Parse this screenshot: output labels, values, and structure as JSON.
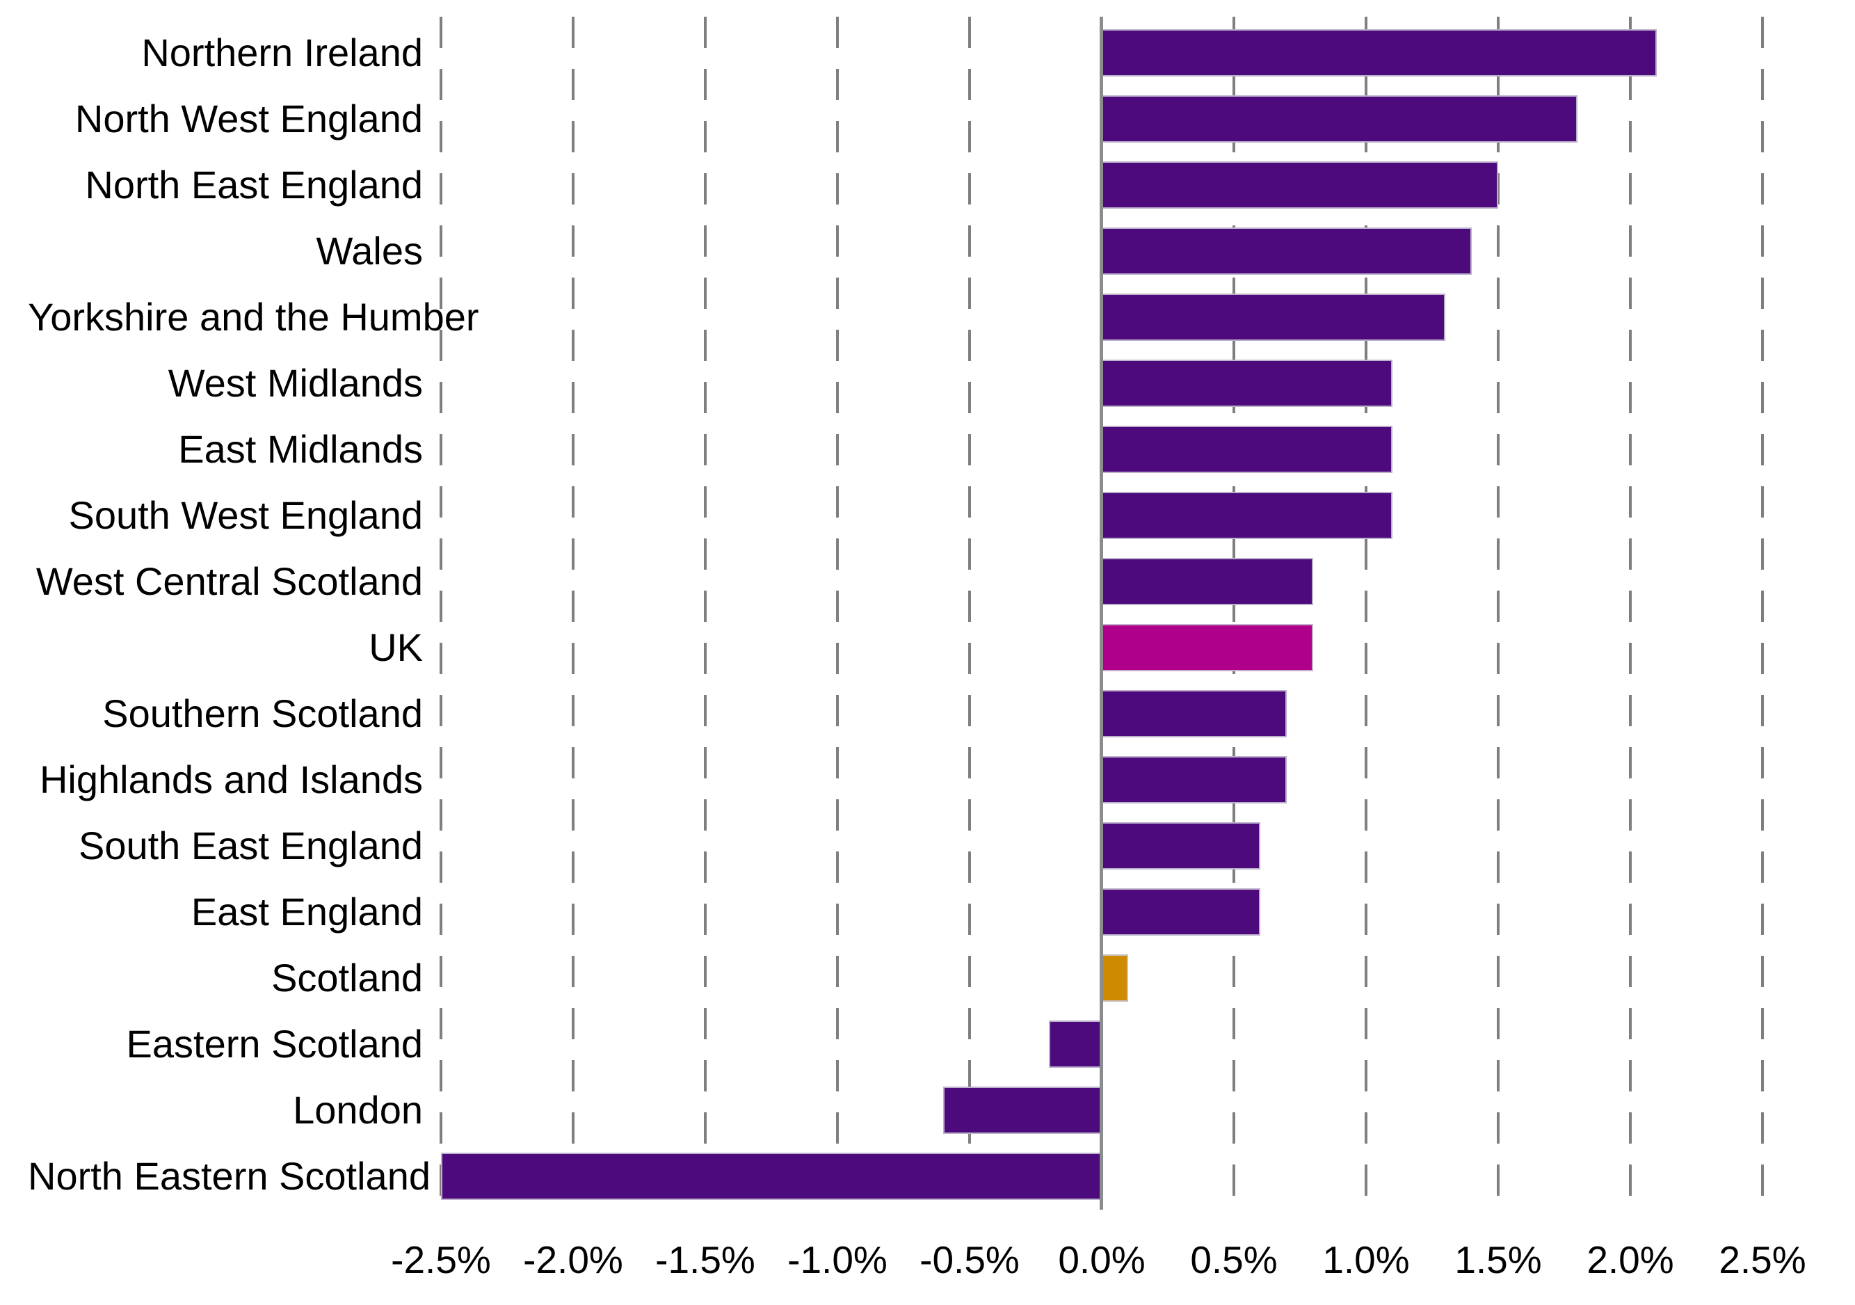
{
  "chart_data": {
    "type": "bar",
    "orientation": "horizontal",
    "title": "",
    "xlabel": "",
    "ylabel": "",
    "unit": "%",
    "categories": [
      "Northern Ireland",
      "North West England",
      "North East England",
      "Wales",
      "Yorkshire and the Humber",
      "West Midlands",
      "East Midlands",
      "South West England",
      "West Central Scotland",
      "UK",
      "Southern Scotland",
      "Highlands and Islands",
      "South East England",
      "East England",
      "Scotland",
      "Eastern Scotland",
      "London",
      "North Eastern Scotland"
    ],
    "values": [
      2.1,
      1.8,
      1.5,
      1.4,
      1.3,
      1.1,
      1.1,
      1.1,
      0.8,
      0.8,
      0.7,
      0.7,
      0.6,
      0.6,
      0.1,
      -0.2,
      -0.6,
      -2.5
    ],
    "x_axis": {
      "min": -2.5,
      "max": 2.5,
      "tick_step": 0.5,
      "tick_values": [
        -2.5,
        -2.0,
        -1.5,
        -1.0,
        -0.5,
        0.0,
        0.5,
        1.0,
        1.5,
        2.0,
        2.5
      ],
      "tick_labels": [
        "-2.5%",
        "-2.0%",
        "-1.5%",
        "-1.0%",
        "-0.5%",
        "0.0%",
        "0.5%",
        "1.0%",
        "1.5%",
        "2.0%",
        "2.5%"
      ],
      "gridlines": "vertical-dashed",
      "zero_line": true
    },
    "legend": null,
    "colors": {
      "default_bar": "#4C0A7D",
      "bar_edge": "#C9C2D4",
      "zero_line": "#8A8D8F",
      "gridline": "#7F7F7F",
      "text": "#000000",
      "background": "#FFFFFF"
    },
    "bar_color_overrides": {
      "UK": "#AF008C",
      "Scotland": "#CE8A00"
    }
  }
}
